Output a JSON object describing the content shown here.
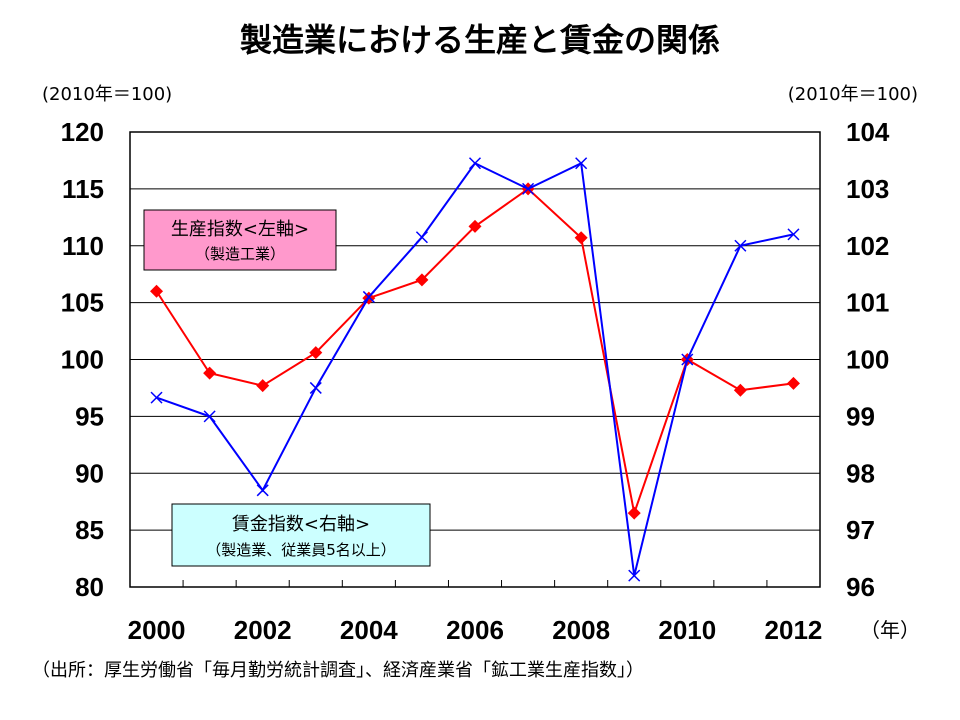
{
  "chart_data": {
    "type": "line",
    "title": "製造業における生産と賃金の関係",
    "x": [
      2000,
      2001,
      2002,
      2003,
      2004,
      2005,
      2006,
      2007,
      2008,
      2009,
      2010,
      2011,
      2012
    ],
    "x_tick_labels": [
      "2000",
      "2002",
      "2004",
      "2006",
      "2008",
      "2010",
      "2012"
    ],
    "x_unit": "（年）",
    "left_axis": {
      "unit_label": "(2010年＝100)",
      "ylim": [
        80,
        120
      ],
      "ticks": [
        "80",
        "85",
        "90",
        "95",
        "100",
        "105",
        "110",
        "115",
        "120"
      ]
    },
    "right_axis": {
      "unit_label": "(2010年＝100)",
      "ylim": [
        96,
        104
      ],
      "ticks": [
        "96",
        "97",
        "98",
        "99",
        "100",
        "101",
        "102",
        "103",
        "104"
      ]
    },
    "series": [
      {
        "name": "生産指数<左軸>",
        "subtitle": "（製造工業）",
        "axis": "left",
        "color": "#ff0000",
        "marker": "diamond",
        "values": [
          106.0,
          98.8,
          97.7,
          100.6,
          105.4,
          107.0,
          111.7,
          115.0,
          110.7,
          86.5,
          100.0,
          97.3,
          97.9
        ]
      },
      {
        "name": "賃金指数<右軸>",
        "subtitle": "（製造業、従業員5名以上）",
        "axis": "right",
        "color": "#0000ff",
        "marker": "x",
        "values": [
          99.33,
          99.0,
          97.7,
          99.5,
          101.1,
          102.15,
          103.45,
          103.0,
          103.45,
          96.2,
          100.0,
          102.0,
          102.2
        ]
      }
    ],
    "grid": true,
    "box_colors": {
      "production": "#ff99cc",
      "wage": "#ccffff"
    }
  },
  "source_note": "（出所：厚生労働省「毎月勤労統計調査」、経済産業省「鉱工業生産指数」）"
}
